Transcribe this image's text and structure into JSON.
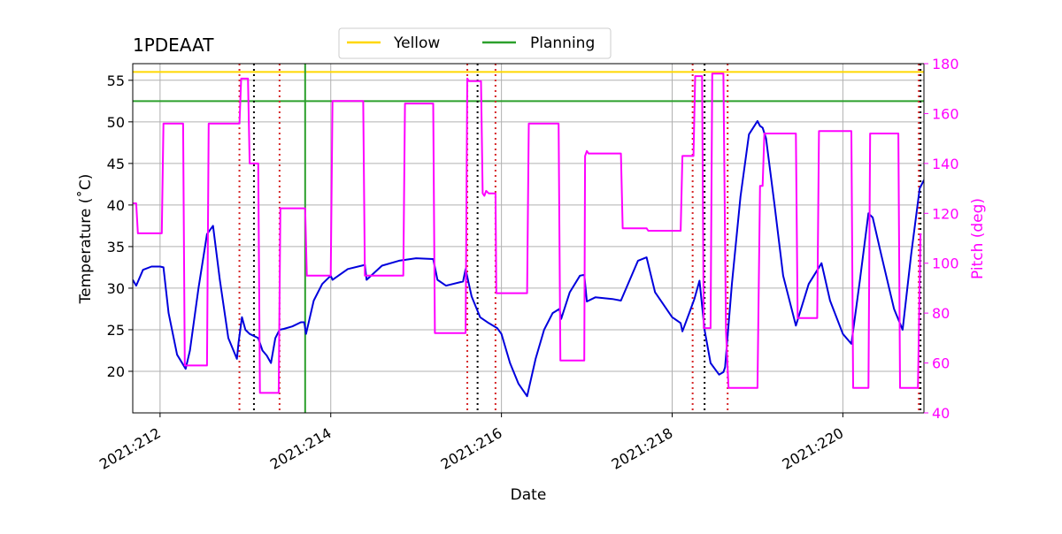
{
  "chart_data": {
    "type": "line",
    "title": "1PDEAAT",
    "xlabel": "Date",
    "ylabel_left": "Temperature ($^\\circ$C)",
    "ylabel_left_display": "Temperature (˚C)",
    "ylabel_right": "Pitch (deg)",
    "xlim": [
      211.68,
      220.95
    ],
    "ylim_left": [
      15.0,
      57.0
    ],
    "ylim_right": [
      40,
      180
    ],
    "x_ticks": [
      212,
      214,
      216,
      218,
      220
    ],
    "x_tick_labels": [
      "2021:212",
      "2021:214",
      "2021:216",
      "2021:218",
      "2021:220"
    ],
    "y_left_ticks": [
      20,
      25,
      30,
      35,
      40,
      45,
      50,
      55
    ],
    "y_right_ticks": [
      40,
      60,
      80,
      100,
      120,
      140,
      160,
      180
    ],
    "grid": true,
    "legend": {
      "placement": "top-center",
      "entries": [
        {
          "label": "Yellow",
          "color": "#ffd700"
        },
        {
          "label": "Planning",
          "color": "#2ca02c"
        }
      ]
    },
    "hlines": [
      {
        "name": "Yellow",
        "y": 56.0,
        "color": "#ffd700"
      },
      {
        "name": "Planning",
        "y": 52.5,
        "color": "#2ca02c"
      }
    ],
    "vlines": [
      {
        "x": 212.93,
        "color": "#d62728",
        "style": "dotted"
      },
      {
        "x": 213.1,
        "color": "#000000",
        "style": "dotted"
      },
      {
        "x": 213.4,
        "color": "#d62728",
        "style": "dotted"
      },
      {
        "x": 213.7,
        "color": "#2ca02c",
        "style": "solid"
      },
      {
        "x": 215.6,
        "color": "#d62728",
        "style": "dotted"
      },
      {
        "x": 215.72,
        "color": "#000000",
        "style": "dotted"
      },
      {
        "x": 215.93,
        "color": "#d62728",
        "style": "dotted"
      },
      {
        "x": 218.24,
        "color": "#d62728",
        "style": "dotted"
      },
      {
        "x": 218.38,
        "color": "#000000",
        "style": "dotted"
      },
      {
        "x": 218.65,
        "color": "#d62728",
        "style": "dotted"
      },
      {
        "x": 220.89,
        "color": "#d62728",
        "style": "dotted"
      },
      {
        "x": 220.91,
        "color": "#000000",
        "style": "dotted"
      }
    ],
    "series": [
      {
        "axis": "left",
        "color": "#0000dd",
        "x": [
          211.68,
          211.72,
          211.8,
          211.9,
          212.0,
          212.04,
          212.1,
          212.2,
          212.3,
          212.35,
          212.45,
          212.55,
          212.62,
          212.7,
          212.8,
          212.9,
          212.92,
          212.96,
          213.0,
          213.05,
          213.15,
          213.2,
          213.25,
          213.3,
          213.35,
          213.4,
          213.45,
          213.55,
          213.65,
          213.69,
          213.71,
          213.8,
          213.9,
          214.0,
          214.02,
          214.2,
          214.4,
          214.42,
          214.6,
          214.8,
          215.0,
          215.2,
          215.25,
          215.35,
          215.55,
          215.58,
          215.65,
          215.75,
          215.85,
          215.95,
          216.0,
          216.1,
          216.2,
          216.3,
          216.4,
          216.5,
          216.6,
          216.68,
          216.7,
          216.8,
          216.92,
          216.97,
          217.0,
          217.1,
          217.3,
          217.4,
          217.6,
          217.7,
          217.8,
          218.0,
          218.1,
          218.12,
          218.2,
          218.26,
          218.32,
          218.38,
          218.45,
          218.55,
          218.6,
          218.62,
          218.7,
          218.8,
          218.9,
          219.0,
          219.03,
          219.06,
          219.1,
          219.2,
          219.3,
          219.45,
          219.6,
          219.75,
          219.85,
          220.0,
          220.1,
          220.2,
          220.3,
          220.35,
          220.45,
          220.6,
          220.7,
          220.8,
          220.9,
          220.95
        ],
        "values": [
          31.0,
          30.3,
          32.2,
          32.6,
          32.6,
          32.5,
          27.0,
          22.0,
          20.3,
          22.5,
          30.0,
          36.5,
          37.5,
          31.0,
          24.0,
          21.5,
          23.5,
          26.5,
          25.0,
          24.5,
          24.0,
          22.5,
          21.9,
          21.0,
          24.0,
          25.0,
          25.1,
          25.4,
          25.9,
          25.9,
          24.5,
          28.5,
          30.5,
          31.5,
          31.0,
          32.3,
          32.8,
          31.0,
          32.7,
          33.3,
          33.6,
          33.5,
          31.0,
          30.3,
          30.8,
          32.3,
          29.0,
          26.5,
          25.8,
          25.2,
          24.5,
          21.0,
          18.5,
          17.0,
          21.5,
          25.0,
          27.0,
          27.5,
          26.3,
          29.5,
          31.5,
          31.6,
          28.4,
          28.9,
          28.7,
          28.5,
          33.3,
          33.7,
          29.5,
          26.5,
          25.8,
          24.8,
          27.0,
          28.7,
          30.9,
          25.0,
          21.0,
          19.6,
          19.9,
          20.5,
          30.5,
          41.0,
          48.5,
          50.1,
          49.5,
          49.3,
          48.0,
          40.0,
          31.5,
          25.5,
          30.5,
          33.0,
          28.5,
          24.5,
          23.3,
          31.0,
          39.0,
          38.5,
          34.0,
          27.5,
          25.0,
          34.0,
          42.0,
          43.0
        ]
      },
      {
        "axis": "right",
        "color": "#ff00ff",
        "x": [
          211.68,
          211.72,
          211.74,
          212.0,
          212.02,
          212.04,
          212.27,
          212.29,
          212.55,
          212.57,
          212.93,
          212.95,
          213.03,
          213.05,
          213.15,
          213.17,
          213.39,
          213.41,
          213.7,
          213.72,
          214.0,
          214.02,
          214.38,
          214.4,
          214.85,
          214.87,
          215.2,
          215.22,
          215.58,
          215.6,
          215.62,
          215.76,
          215.78,
          215.8,
          215.82,
          215.85,
          215.93,
          215.94,
          215.96,
          216.3,
          216.32,
          216.67,
          216.69,
          216.97,
          216.98,
          217.0,
          217.02,
          217.4,
          217.42,
          217.7,
          217.72,
          218.1,
          218.12,
          218.25,
          218.27,
          218.35,
          218.37,
          218.45,
          218.47,
          218.6,
          218.63,
          218.66,
          219.0,
          219.03,
          219.06,
          219.08,
          219.45,
          219.47,
          219.7,
          219.72,
          220.1,
          220.12,
          220.3,
          220.32,
          220.65,
          220.67,
          220.88,
          220.91
        ],
        "values": [
          124,
          124,
          112,
          112,
          112,
          156,
          156,
          59,
          59,
          156,
          156,
          174,
          174,
          140,
          140,
          48,
          48,
          122,
          122,
          95,
          95,
          165,
          165,
          95,
          95,
          164,
          164,
          72,
          72,
          174,
          173,
          173,
          128,
          127,
          129,
          128,
          128,
          88,
          88,
          88,
          156,
          156,
          61,
          61,
          143,
          145,
          144,
          144,
          114,
          114,
          113,
          113,
          143,
          143,
          175,
          175,
          74,
          74,
          176,
          176,
          73,
          50,
          50,
          131,
          131,
          152,
          152,
          78,
          78,
          153,
          153,
          50,
          50,
          152,
          152,
          50,
          50,
          112
        ]
      }
    ]
  }
}
